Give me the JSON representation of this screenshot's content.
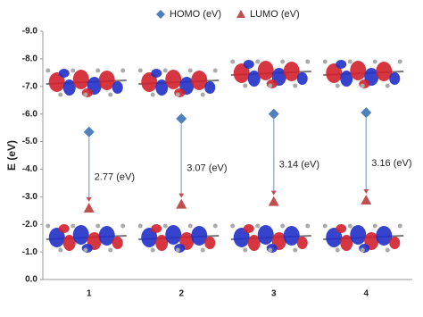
{
  "chart_data": {
    "type": "scatter",
    "y_label": "E (eV)",
    "categories": [
      "1",
      "2",
      "3",
      "4"
    ],
    "series": [
      {
        "name": "HOMO  (eV)",
        "color": "#4f81bd",
        "marker": "diamond",
        "values": [
          -5.35,
          -5.83,
          -6.0,
          -6.05
        ]
      },
      {
        "name": "LUMO  (eV)",
        "color": "#c0504d",
        "marker": "triangle",
        "values": [
          -2.59,
          -2.73,
          -2.83,
          -2.88
        ]
      }
    ],
    "annotations": [
      "2.77 (eV)",
      "3.07 (eV)",
      "3.14 (eV)",
      "3.16 (eV)"
    ],
    "ylim": [
      0,
      -9
    ],
    "yticks": [
      {
        "value": 0,
        "label": "0.0"
      },
      {
        "value": -1,
        "label": "-1.0"
      },
      {
        "value": -2,
        "label": "-2.0"
      },
      {
        "value": -3,
        "label": "-3.0"
      },
      {
        "value": -4,
        "label": "-4.0"
      },
      {
        "value": -5,
        "label": "-5.0"
      },
      {
        "value": -6,
        "label": "-6.0"
      },
      {
        "value": -7,
        "label": "-7.0"
      },
      {
        "value": -8,
        "label": "-8.0"
      },
      {
        "value": -9,
        "label": "-9.0"
      }
    ],
    "legend": "top",
    "grid": false
  }
}
